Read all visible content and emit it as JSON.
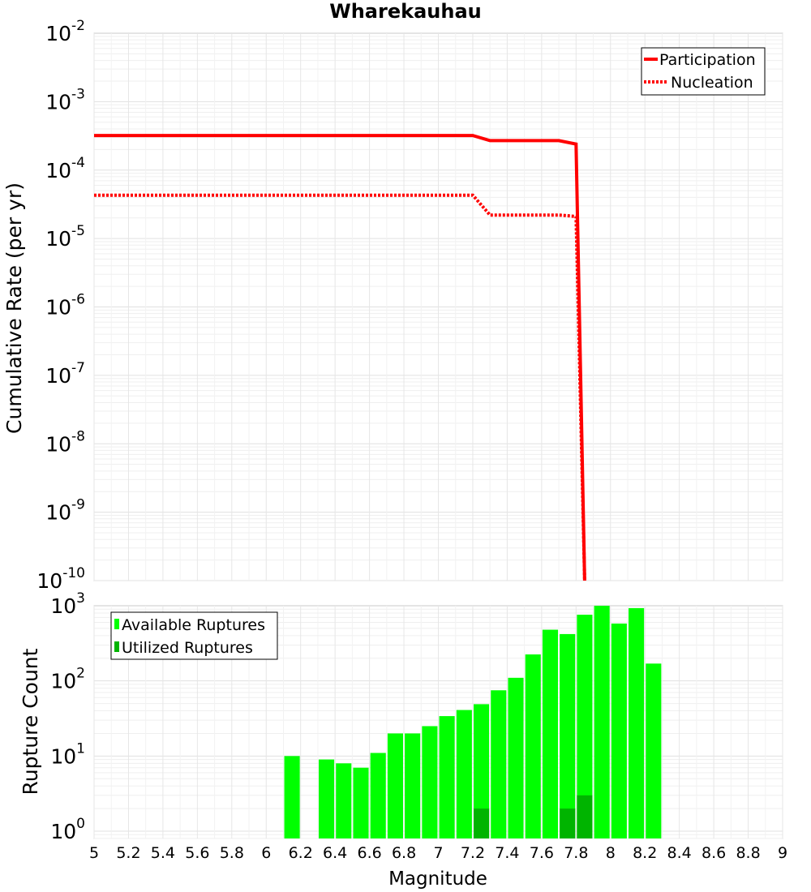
{
  "chart_data": [
    {
      "type": "line",
      "title": "Wharekauhau",
      "ylabel": "Cumulative Rate (per yr)",
      "yscale": "log",
      "xlim": [
        5,
        9
      ],
      "ylim": [
        1e-10,
        0.01
      ],
      "ytick_bases": [
        "10",
        "10",
        "10",
        "10",
        "10",
        "10",
        "10",
        "10",
        "10"
      ],
      "ytick_exps": [
        "-10",
        "-9",
        "-8",
        "-7",
        "-6",
        "-5",
        "-4",
        "-3",
        "-2"
      ],
      "grid": true,
      "legend_position": "top-right",
      "series": [
        {
          "name": "Participation",
          "style": "solid",
          "color": "#ff0000",
          "x": [
            5.0,
            7.2,
            7.3,
            7.7,
            7.8,
            7.85
          ],
          "y": [
            0.00032,
            0.00032,
            0.00027,
            0.00027,
            0.00024,
            1e-10
          ]
        },
        {
          "name": "Nucleation",
          "style": "dotted",
          "color": "#ff0000",
          "x": [
            5.0,
            7.2,
            7.3,
            7.7,
            7.8,
            7.85
          ],
          "y": [
            4.3e-05,
            4.3e-05,
            2.2e-05,
            2.2e-05,
            2.1e-05,
            1e-10
          ]
        }
      ]
    },
    {
      "type": "bar",
      "ylabel": "Rupture Count",
      "xlabel": "Magnitude",
      "yscale": "log",
      "xlim": [
        5,
        9
      ],
      "ylim": [
        0.8,
        1000
      ],
      "ytick_bases": [
        "10",
        "10",
        "10",
        "10"
      ],
      "ytick_exps": [
        "0",
        "1",
        "2",
        "3"
      ],
      "xticks": [
        "5",
        "5.2",
        "5.4",
        "5.6",
        "5.8",
        "6",
        "6.2",
        "6.4",
        "6.6",
        "6.8",
        "7",
        "7.2",
        "7.4",
        "7.6",
        "7.8",
        "8",
        "8.2",
        "8.4",
        "8.6",
        "8.8",
        "9"
      ],
      "grid": true,
      "legend_position": "top-left",
      "series": [
        {
          "name": "Available Ruptures",
          "color": "#00ff00",
          "x": [
            6.15,
            6.35,
            6.45,
            6.55,
            6.65,
            6.75,
            6.85,
            6.95,
            7.05,
            7.15,
            7.25,
            7.35,
            7.45,
            7.55,
            7.65,
            7.75,
            7.85,
            7.95,
            8.05,
            8.15,
            8.25
          ],
          "values": [
            10,
            9,
            8,
            7,
            11,
            20,
            20,
            25,
            34,
            41,
            49,
            75,
            110,
            225,
            480,
            420,
            760,
            1000,
            580,
            930,
            170
          ]
        },
        {
          "name": "Utilized Ruptures",
          "color": "#00b400",
          "x": [
            7.25,
            7.75,
            7.85
          ],
          "values": [
            2,
            2,
            3
          ]
        }
      ]
    }
  ]
}
